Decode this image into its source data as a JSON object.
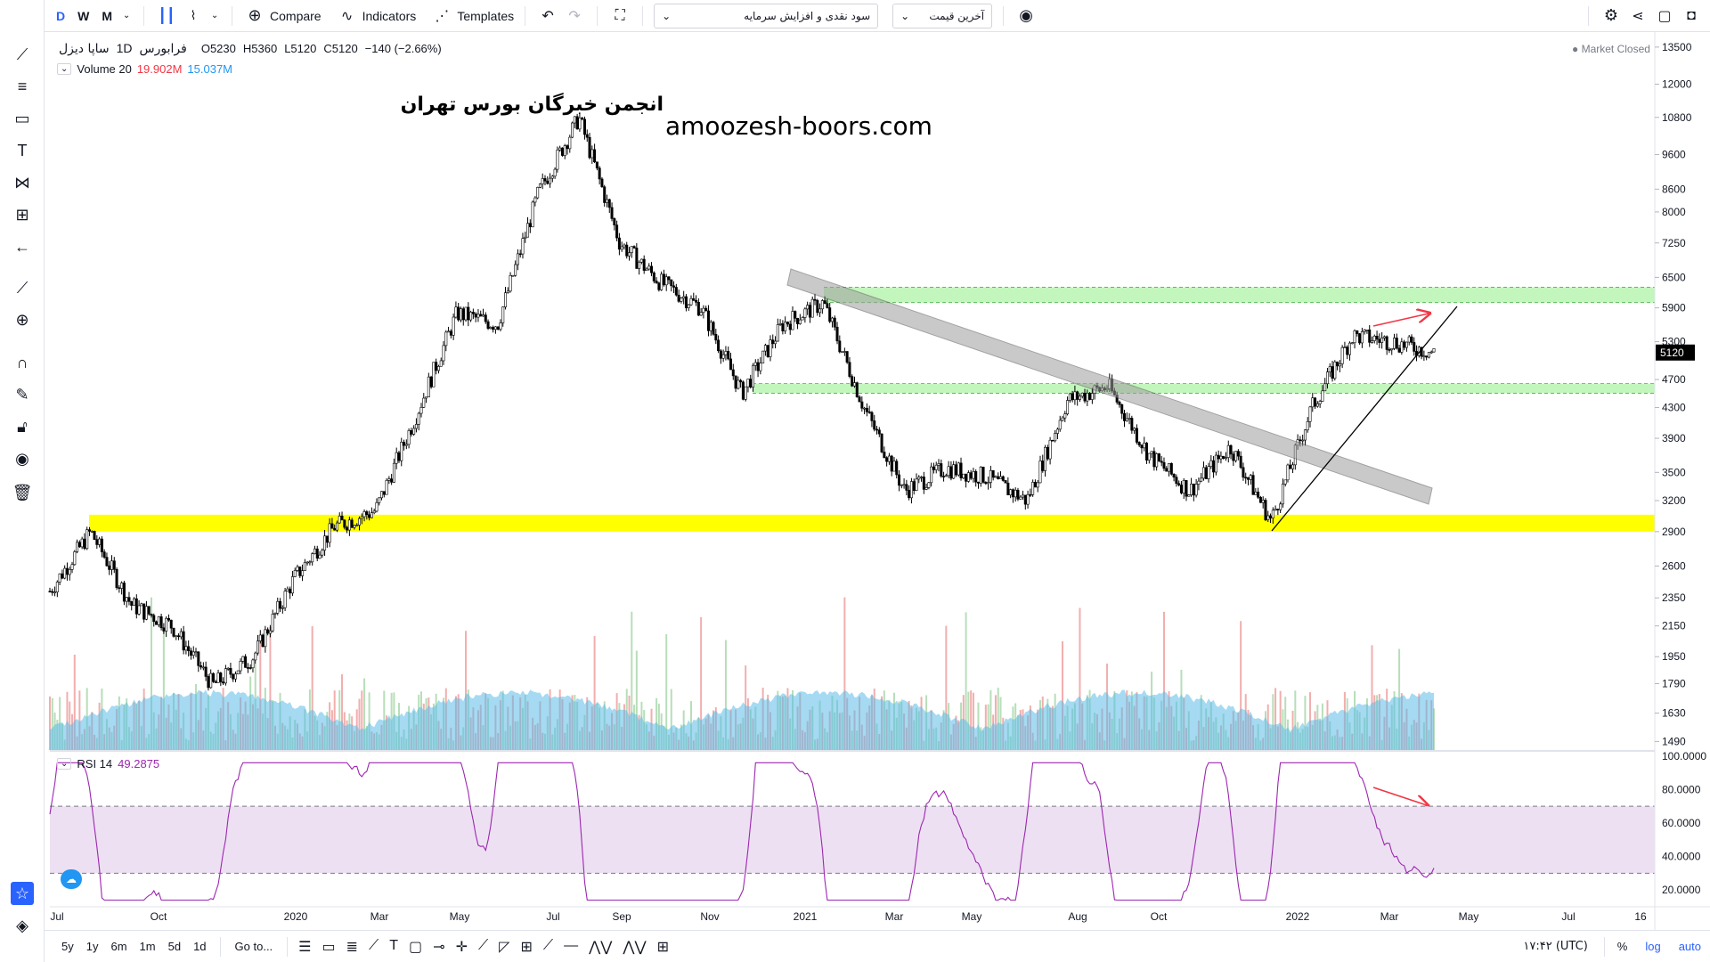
{
  "toolbar": {
    "intervals": [
      "D",
      "W",
      "M"
    ],
    "compare_label": "Compare",
    "indicators_label": "Indicators",
    "templates_label": "Templates",
    "select_1": "سود نقدی و افزایش سرمایه",
    "select_2": "آخرین قیمت"
  },
  "legend": {
    "symbol": "ساپا دیزل",
    "interval": "1D",
    "exchange": "فرابورس",
    "open": "O5230",
    "high": "H5360",
    "low": "L5120",
    "close": "C5120",
    "change": "−140 (−2.66%)",
    "market_status": "Market Closed",
    "volume_label": "Volume 20",
    "volume_val_1": "19.902M",
    "volume_val_2": "15.037M",
    "rsi_label": "RSI 14",
    "rsi_value": "49.2875"
  },
  "watermark": {
    "line1": "انجمن خبرگان بورس تهران",
    "line2": "amoozesh-boors.com"
  },
  "bottom": {
    "ranges": [
      "5y",
      "1y",
      "6m",
      "1m",
      "5d",
      "1d"
    ],
    "goto_label": "Go to...",
    "time": "۱۷:۴۲ (UTC)",
    "pct": "%",
    "log": "log",
    "auto": "auto"
  },
  "colors": {
    "accent": "#2962ff",
    "yellow_zone": "#ffff00",
    "green_zone": "#b7f5b0",
    "rsi_line": "#9c27b0",
    "rsi_band": "#ede0f2",
    "arrow_red": "#f23645",
    "vol_ma": "#5bbbe8"
  },
  "chart_data": {
    "type": "candlestick",
    "price_scale": "log",
    "price_ticks": [
      13500,
      12000,
      10800,
      9600,
      8600,
      8000,
      7250,
      6500,
      5900,
      5300,
      4700,
      4300,
      3900,
      3500,
      3200,
      2900,
      2600,
      2350,
      2150,
      1950,
      1790,
      1630,
      1490
    ],
    "last_price": 5120,
    "time_ticks": [
      "Jul",
      "Oct",
      "2020",
      "Mar",
      "May",
      "Jul",
      "Sep",
      "Nov",
      "2021",
      "Mar",
      "May",
      "Aug",
      "Oct",
      "2022",
      "Mar",
      "May",
      "Jul",
      "16"
    ],
    "close_path": [
      [
        "Jul",
        2400
      ],
      [
        "Aug",
        2900
      ],
      [
        "Sep",
        2300
      ],
      [
        "Oct",
        2150
      ],
      [
        "Nov",
        1780
      ],
      [
        "Dec",
        1950
      ],
      [
        "2020",
        2500
      ],
      [
        "Feb",
        2950
      ],
      [
        "Mar",
        3100
      ],
      [
        "Apr",
        4200
      ],
      [
        "May",
        5800
      ],
      [
        "Jun",
        5600
      ],
      [
        "Jul",
        8500
      ],
      [
        "Jul-peak",
        10800
      ],
      [
        "Aug",
        7250
      ],
      [
        "Sep",
        6400
      ],
      [
        "Oct",
        5900
      ],
      [
        "Nov",
        4500
      ],
      [
        "Dec",
        5600
      ],
      [
        "2021",
        6000
      ],
      [
        "Feb",
        4300
      ],
      [
        "Mar",
        3300
      ],
      [
        "Apr",
        3550
      ],
      [
        "May",
        3450
      ],
      [
        "Jun",
        3200
      ],
      [
        "Jul",
        4400
      ],
      [
        "Aug",
        4600
      ],
      [
        "Sep",
        3700
      ],
      [
        "Oct",
        3300
      ],
      [
        "Nov",
        3800
      ],
      [
        "Dec",
        3000
      ],
      [
        "2022",
        4300
      ],
      [
        "Feb",
        5400
      ],
      [
        "Mar",
        5300
      ],
      [
        "Mar-end",
        5120
      ]
    ],
    "zones": [
      {
        "from": 2900,
        "to": 3060,
        "color": "yellow"
      },
      {
        "from": 4500,
        "to": 4640,
        "color": "green"
      },
      {
        "from": 6000,
        "to": 6300,
        "color": "green"
      }
    ],
    "rsi": {
      "period": 14,
      "last": 49.2875,
      "bands": [
        30,
        70
      ],
      "ticks": [
        100,
        80,
        60,
        40,
        20
      ]
    },
    "volume": {
      "period": 20,
      "values": [
        "19.902M",
        "15.037M"
      ]
    }
  }
}
